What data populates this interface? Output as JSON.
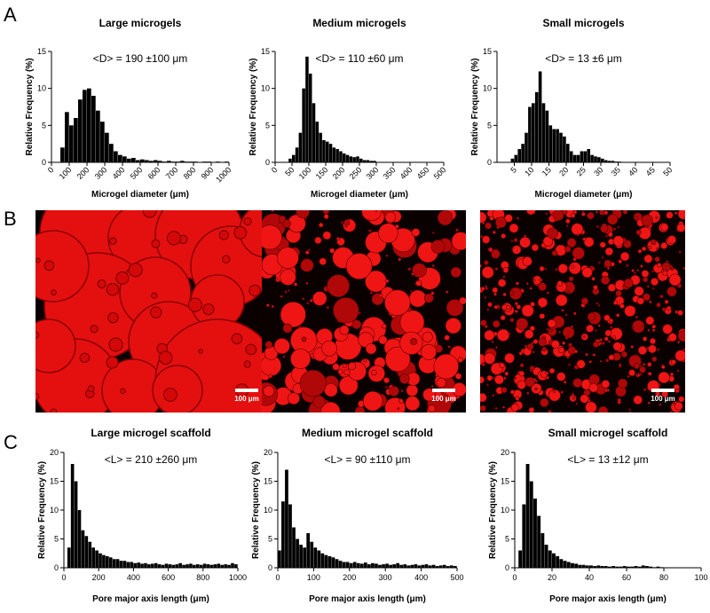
{
  "panel_labels": [
    "A",
    "B",
    "C"
  ],
  "images": [
    {
      "scale_bar": "100 μm"
    },
    {
      "scale_bar": "100 μm"
    },
    {
      "scale_bar": "100 μm"
    }
  ],
  "chart_data": [
    {
      "type": "histogram",
      "title": "Large microgels",
      "annotation": "<D> = 190 ±100 μm",
      "x_label": "Microgel diameter (μm)",
      "y_label": "Relative Frequency (%)",
      "color": "#000000",
      "bins": [
        50,
        75,
        100,
        125,
        150,
        175,
        200,
        225,
        250,
        275,
        300,
        325,
        350,
        375,
        400,
        425,
        450,
        475,
        500,
        525,
        550,
        575,
        600,
        625,
        650,
        675,
        700,
        725,
        750,
        775,
        800,
        825,
        850,
        875,
        900,
        925,
        950,
        975,
        1000
      ],
      "values": [
        2,
        6.8,
        5,
        6,
        8.5,
        9.8,
        10,
        9,
        7,
        5.5,
        4,
        2.5,
        1.5,
        1,
        0.8,
        0.5,
        0.6,
        0.3,
        0.4,
        0.3,
        0.2,
        0.3,
        0.2,
        0.1,
        0.2,
        0.1,
        0.1,
        0.2,
        0.1,
        0.1,
        0.1,
        0,
        0.1,
        0.1,
        0,
        0.1,
        0,
        0.1
      ],
      "xlim": [
        0,
        1000
      ],
      "xticks": [
        0,
        100,
        200,
        300,
        400,
        500,
        600,
        700,
        800,
        900,
        1000
      ],
      "ylim": [
        0,
        15
      ],
      "yticks": [
        0,
        5,
        10,
        15
      ]
    },
    {
      "type": "histogram",
      "title": "Medium microgels",
      "annotation": "<D> = 110 ±60 μm",
      "x_label": "Microgel diameter (μm)",
      "y_label": "Relative Frequency (%)",
      "color": "#000000",
      "bins": [
        40,
        50,
        60,
        70,
        80,
        90,
        100,
        110,
        120,
        130,
        140,
        150,
        160,
        170,
        180,
        190,
        200,
        210,
        220,
        230,
        240,
        250,
        260,
        270,
        280,
        290,
        300
      ],
      "values": [
        0.5,
        1,
        2,
        4,
        10,
        14.3,
        12,
        8,
        5.5,
        4,
        3,
        2.8,
        2.5,
        2,
        1.8,
        1.5,
        1.2,
        1,
        0.8,
        0.7,
        0.8,
        0.5,
        0.3,
        0.3,
        0.2,
        0.2
      ],
      "xlim": [
        0,
        500
      ],
      "xticks": [
        0,
        50,
        100,
        150,
        200,
        250,
        300,
        350,
        400,
        450,
        500
      ],
      "ylim": [
        0,
        15
      ],
      "yticks": [
        0,
        5,
        10,
        15
      ]
    },
    {
      "type": "histogram",
      "title": "Small microgels",
      "annotation": "<D> = 13 ±6 μm",
      "x_label": "Microgel diameter (μm)",
      "y_label": "Relative Frequency (%)",
      "color": "#000000",
      "bins": [
        4,
        5,
        6,
        7,
        8,
        9,
        10,
        11,
        12,
        13,
        14,
        15,
        16,
        17,
        18,
        19,
        20,
        21,
        22,
        23,
        24,
        25,
        26,
        27,
        28,
        29,
        30,
        31,
        32,
        33,
        34,
        35,
        36
      ],
      "values": [
        0.5,
        1,
        1.8,
        2.5,
        4,
        7.5,
        8,
        9.5,
        12.3,
        8,
        7,
        5,
        4.5,
        4.5,
        4,
        3.5,
        2.5,
        1.5,
        1,
        1,
        1.5,
        1.5,
        1.8,
        1,
        0.8,
        0.7,
        0.5,
        0.3,
        0.2,
        0.2,
        0.1,
        0.1
      ],
      "xlim": [
        0,
        50
      ],
      "xticks": [
        5,
        10,
        15,
        20,
        25,
        30,
        35,
        40,
        45,
        50
      ],
      "ylim": [
        0,
        15
      ],
      "yticks": [
        0,
        5,
        10,
        15
      ]
    },
    {
      "type": "histogram",
      "title": "Large microgel scaffold",
      "annotation": "<L> = 210 ±260 μm",
      "x_label": "Pore major axis length (μm)",
      "y_label": "Relative Frequency (%)",
      "color": "#000000",
      "bins": [
        20,
        40,
        60,
        80,
        100,
        120,
        140,
        160,
        180,
        200,
        220,
        240,
        260,
        280,
        300,
        320,
        340,
        360,
        380,
        400,
        420,
        440,
        460,
        480,
        500,
        520,
        540,
        560,
        580,
        600,
        620,
        640,
        660,
        680,
        700,
        720,
        740,
        760,
        780,
        800,
        820,
        840,
        860,
        880,
        900,
        920,
        940,
        960,
        980,
        1000
      ],
      "values": [
        3.5,
        18,
        15,
        10,
        6.5,
        5.5,
        4.5,
        3.5,
        3,
        2.5,
        2.2,
        2,
        1.8,
        1.5,
        1.5,
        1.2,
        1.2,
        1,
        1,
        0.8,
        0.9,
        0.7,
        0.8,
        0.6,
        0.7,
        0.8,
        0.6,
        0.5,
        0.7,
        0.6,
        0.5,
        0.6,
        0.8,
        0.5,
        0.6,
        0.7,
        0.5,
        0.6,
        0.5,
        0.7,
        0.6,
        0.5,
        0.6,
        0.7,
        0.5,
        0.6,
        0.5,
        0.8,
        0.6
      ],
      "xlim": [
        0,
        1000
      ],
      "xticks": [
        0,
        200,
        400,
        600,
        800,
        1000
      ],
      "ylim": [
        0,
        20
      ],
      "yticks": [
        0,
        5,
        10,
        15,
        20
      ]
    },
    {
      "type": "histogram",
      "title": "Medium microgel scaffold",
      "annotation": "<L> = 90 ±110 μm",
      "x_label": "Pore major axis length (μm)",
      "y_label": "Relative Frequency (%)",
      "color": "#000000",
      "bins": [
        0,
        10,
        20,
        30,
        40,
        50,
        60,
        70,
        80,
        90,
        100,
        110,
        120,
        130,
        140,
        150,
        160,
        170,
        180,
        190,
        200,
        210,
        220,
        230,
        240,
        250,
        260,
        270,
        280,
        290,
        300,
        310,
        320,
        330,
        340,
        350,
        360,
        370,
        380,
        390,
        400,
        410,
        420,
        430,
        440,
        450,
        460,
        470,
        480,
        490,
        500
      ],
      "values": [
        3,
        11.5,
        17,
        11,
        7,
        5,
        4,
        3.5,
        6,
        4.5,
        3.5,
        3,
        2.5,
        2.2,
        2,
        1.8,
        1.5,
        1.2,
        1,
        1,
        0.8,
        1,
        0.8,
        0.7,
        0.9,
        0.6,
        0.8,
        0.7,
        0.5,
        0.6,
        0.7,
        0.5,
        0.6,
        0.8,
        0.5,
        0.6,
        0.4,
        0.5,
        0.6,
        0.4,
        0.5,
        0.6,
        0.4,
        0.5,
        0.3,
        0.4,
        0.5,
        0.3,
        0.4,
        0.3
      ],
      "xlim": [
        0,
        500
      ],
      "xticks": [
        0,
        100,
        200,
        300,
        400,
        500
      ],
      "ylim": [
        0,
        20
      ],
      "yticks": [
        0,
        5,
        10,
        15,
        20
      ]
    },
    {
      "type": "histogram",
      "title": "Small microgel scaffold",
      "annotation": "<L> = 13 ±12 μm",
      "x_label": "Pore major axis length (μm)",
      "y_label": "Relative Frequency (%)",
      "color": "#000000",
      "bins": [
        2,
        4,
        6,
        8,
        10,
        12,
        14,
        16,
        18,
        20,
        22,
        24,
        26,
        28,
        30,
        32,
        34,
        36,
        38,
        40,
        42,
        44,
        46,
        48,
        50,
        52,
        54,
        56,
        58,
        60,
        62,
        64,
        66,
        68,
        70,
        72,
        74,
        76,
        78,
        80
      ],
      "values": [
        3,
        11,
        18,
        15,
        12,
        9,
        6,
        4,
        3,
        2.5,
        2,
        1.5,
        1.2,
        1,
        0.8,
        0.7,
        0.5,
        0.5,
        0.4,
        0.4,
        0.3,
        0.4,
        0.3,
        0.3,
        0.2,
        0.3,
        0.2,
        0.2,
        0.3,
        0.2,
        0.2,
        0.3,
        0.2,
        0.4,
        0.3,
        0.2,
        0.1,
        0.2,
        0.1
      ],
      "xlim": [
        0,
        100
      ],
      "xticks": [
        0,
        20,
        40,
        60,
        80,
        100
      ],
      "ylim": [
        0,
        20
      ],
      "yticks": [
        0,
        5,
        10,
        15,
        20
      ]
    }
  ]
}
